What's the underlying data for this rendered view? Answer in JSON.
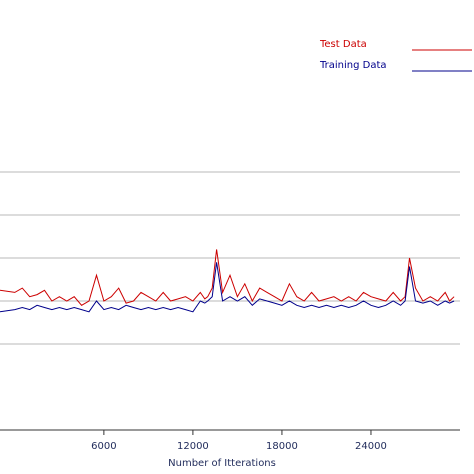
{
  "chart_data": {
    "type": "line",
    "title": "",
    "xlabel": "Number of Itterations",
    "ylabel": "",
    "xlim": [
      -1000,
      30000
    ],
    "ylim": [
      0,
      1
    ],
    "x_ticks": [
      6000,
      12000,
      18000,
      24000
    ],
    "x_tick_labels": [
      "6000",
      "12000",
      "18000",
      "24000"
    ],
    "y_grid_values": [
      0.2,
      0.3,
      0.4,
      0.5,
      0.6
    ],
    "grid": true,
    "legend_position": "top-right",
    "series": [
      {
        "name": "Test Data",
        "color": "#cc0000",
        "x": [
          -1000,
          0,
          500,
          1000,
          1500,
          2000,
          2500,
          3000,
          3500,
          4000,
          4500,
          5000,
          5500,
          6000,
          6500,
          7000,
          7500,
          8000,
          8500,
          9000,
          9500,
          10000,
          10500,
          11000,
          11500,
          12000,
          12500,
          12800,
          13000,
          13300,
          13600,
          14000,
          14500,
          15000,
          15500,
          16000,
          16500,
          17000,
          17500,
          18000,
          18500,
          19000,
          19500,
          20000,
          20500,
          21000,
          21500,
          22000,
          22500,
          23000,
          23500,
          24000,
          24500,
          25000,
          25500,
          26000,
          26300,
          26600,
          27000,
          27500,
          28000,
          28500,
          29000,
          29300,
          29600
        ],
        "y": [
          0.325,
          0.32,
          0.33,
          0.31,
          0.315,
          0.325,
          0.3,
          0.31,
          0.3,
          0.31,
          0.29,
          0.3,
          0.36,
          0.3,
          0.31,
          0.33,
          0.295,
          0.3,
          0.32,
          0.31,
          0.3,
          0.32,
          0.3,
          0.305,
          0.31,
          0.3,
          0.32,
          0.305,
          0.31,
          0.33,
          0.42,
          0.32,
          0.36,
          0.31,
          0.34,
          0.3,
          0.33,
          0.32,
          0.31,
          0.3,
          0.34,
          0.31,
          0.3,
          0.32,
          0.3,
          0.305,
          0.31,
          0.3,
          0.31,
          0.3,
          0.32,
          0.31,
          0.305,
          0.3,
          0.32,
          0.3,
          0.31,
          0.4,
          0.33,
          0.3,
          0.31,
          0.3,
          0.32,
          0.3,
          0.31
        ]
      },
      {
        "name": "Training Data",
        "color": "#00008b",
        "x": [
          -1000,
          0,
          500,
          1000,
          1500,
          2000,
          2500,
          3000,
          3500,
          4000,
          4500,
          5000,
          5500,
          6000,
          6500,
          7000,
          7500,
          8000,
          8500,
          9000,
          9500,
          10000,
          10500,
          11000,
          11500,
          12000,
          12500,
          12800,
          13000,
          13300,
          13600,
          14000,
          14500,
          15000,
          15500,
          16000,
          16500,
          17000,
          17500,
          18000,
          18500,
          19000,
          19500,
          20000,
          20500,
          21000,
          21500,
          22000,
          22500,
          23000,
          23500,
          24000,
          24500,
          25000,
          25500,
          26000,
          26300,
          26600,
          27000,
          27500,
          28000,
          28500,
          29000,
          29300,
          29600
        ],
        "y": [
          0.275,
          0.28,
          0.285,
          0.28,
          0.29,
          0.285,
          0.28,
          0.285,
          0.28,
          0.285,
          0.28,
          0.275,
          0.3,
          0.28,
          0.285,
          0.28,
          0.29,
          0.285,
          0.28,
          0.285,
          0.28,
          0.285,
          0.28,
          0.285,
          0.28,
          0.275,
          0.3,
          0.295,
          0.3,
          0.31,
          0.39,
          0.3,
          0.31,
          0.3,
          0.31,
          0.29,
          0.305,
          0.3,
          0.295,
          0.29,
          0.3,
          0.29,
          0.285,
          0.29,
          0.285,
          0.29,
          0.285,
          0.29,
          0.285,
          0.29,
          0.3,
          0.29,
          0.285,
          0.29,
          0.3,
          0.29,
          0.3,
          0.38,
          0.3,
          0.295,
          0.3,
          0.29,
          0.3,
          0.295,
          0.3
        ]
      }
    ]
  }
}
